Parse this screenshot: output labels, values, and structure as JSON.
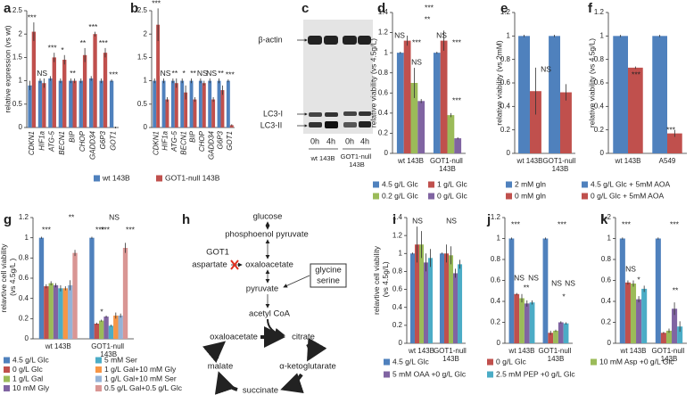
{
  "chart_data": [
    {
      "type": "bar",
      "panel": "a",
      "ylabel": "relative expression (vs wt)",
      "categories": [
        "CDKN1",
        "HIF1a",
        "ATG-5",
        "BECN1",
        "BIP",
        "CHOP",
        "GADD34",
        "G6P3",
        "GOT1"
      ],
      "series": [
        {
          "name": "wt 143B",
          "color": "#4f81bd",
          "values": [
            0.9,
            1,
            1.05,
            1,
            1,
            1,
            1.05,
            1,
            1
          ],
          "errors": [
            0.1,
            0.05,
            0.05,
            0.05,
            0.05,
            0.05,
            0.05,
            0.05,
            0.03
          ]
        },
        {
          "name": "GOT1-null 143B",
          "color": "#c0504d",
          "values": [
            2.05,
            0.95,
            1.5,
            1.45,
            1,
            1.55,
            2,
            1.6,
            0
          ],
          "errors": [
            0.2,
            0.1,
            0.1,
            0.1,
            0.05,
            0.15,
            0.05,
            0.1,
            0.02
          ]
        }
      ],
      "annotations": [
        "***",
        "NS",
        "***",
        "*",
        "**",
        "**",
        "***",
        "***",
        "***"
      ],
      "ylim": [
        0,
        2.5
      ],
      "yticks": [
        0,
        0.5,
        1,
        1.5,
        2,
        2.5
      ]
    },
    {
      "type": "bar",
      "panel": "b",
      "categories": [
        "CDKN1",
        "HIF1a",
        "ATG-5",
        "BECN1",
        "BIP",
        "CHOP",
        "GADD34",
        "G6P3",
        "GOT1"
      ],
      "series": [
        {
          "color": "#4f81bd",
          "values": [
            1,
            1,
            1,
            1,
            1,
            1,
            1,
            1,
            1
          ],
          "errors": [
            0.05,
            0.05,
            0.05,
            0.05,
            0.05,
            0.05,
            0.05,
            0.05,
            0.03
          ]
        },
        {
          "color": "#c0504d",
          "values": [
            2.2,
            0.6,
            0.95,
            0.75,
            0.6,
            0.95,
            0.6,
            0.8,
            0.05
          ],
          "errors": [
            0.35,
            0.05,
            0.1,
            0.15,
            0.05,
            0.05,
            0.05,
            0.1,
            0.02
          ]
        }
      ],
      "annotations": [
        "***",
        "NS",
        "**",
        "*",
        "**",
        "NS",
        "NS",
        "**",
        "***"
      ],
      "ylim": [
        0,
        2.5
      ],
      "yticks": [
        0,
        0.5,
        1,
        1.5,
        2,
        2.5
      ]
    },
    {
      "type": "bar",
      "panel": "d",
      "ylabel": "relative viability (vs 4.5g/L)",
      "categories": [
        "wt 143B",
        "GOT1-null 143B"
      ],
      "series": [
        {
          "name": "4.5 g/L Glc",
          "color": "#4f81bd",
          "values": [
            1,
            1
          ],
          "errors": [
            0.01,
            0.01
          ]
        },
        {
          "name": "1 g/L Glc",
          "color": "#c0504d",
          "values": [
            1.12,
            1.12
          ],
          "errors": [
            0.05,
            0.1
          ]
        },
        {
          "name": "0.2 g/L Glc",
          "color": "#9bbb59",
          "values": [
            0.7,
            0.38
          ],
          "errors": [
            0.15,
            0.02
          ]
        },
        {
          "name": "0 g/L Glc",
          "color": "#8064a2",
          "values": [
            0.52,
            0.15
          ],
          "errors": [
            0.02,
            0.01
          ]
        }
      ],
      "annotations": [
        "NS",
        "***",
        "NS",
        "***",
        "**",
        "NS",
        "***",
        "***"
      ],
      "ylim": [
        0,
        1.4
      ],
      "yticks": [
        0,
        0.2,
        0.4,
        0.6,
        0.8,
        1,
        1.2,
        1.4
      ]
    },
    {
      "type": "bar",
      "panel": "e",
      "ylabel": "relative viability (vs 2mM)",
      "categories": [
        "wt 143B",
        "GOT1-null 143B"
      ],
      "series": [
        {
          "name": "2 mM gln",
          "color": "#4f81bd",
          "values": [
            1,
            1
          ],
          "errors": [
            0.01,
            0.01
          ]
        },
        {
          "name": "0 mM gln",
          "color": "#c0504d",
          "values": [
            0.53,
            0.52
          ],
          "errors": [
            0.2,
            0.07
          ]
        }
      ],
      "annotations": [
        "NS"
      ],
      "ylim": [
        0,
        1.2
      ],
      "yticks": [
        0,
        0.2,
        0.4,
        0.6,
        0.8,
        1,
        1.2
      ]
    },
    {
      "type": "bar",
      "panel": "f",
      "ylabel": "relative viability (vs 4.5g/L)",
      "categories": [
        "wt 143B",
        "A549"
      ],
      "series": [
        {
          "name": "4.5 g/L Glc + 5mM AOA",
          "color": "#4f81bd",
          "values": [
            1,
            1
          ],
          "errors": [
            0.01,
            0.01
          ]
        },
        {
          "name": "0 g/L Glc + 5mM AOA",
          "color": "#c0504d",
          "values": [
            0.73,
            0.17
          ],
          "errors": [
            0.01,
            0.03
          ]
        }
      ],
      "annotations": [
        "***",
        "***"
      ],
      "ylim": [
        0,
        1.2
      ],
      "yticks": [
        0,
        0.2,
        0.4,
        0.6,
        0.8,
        1,
        1.2
      ]
    },
    {
      "type": "bar",
      "panel": "g",
      "ylabel": "relavtive cell viability (vs 4.5g/L )",
      "categories": [
        "wt 143B",
        "GOT1-null 143B"
      ],
      "series": [
        {
          "name": "4.5 g/L Glc",
          "color": "#4f81bd",
          "values": [
            1,
            1
          ],
          "errors": [
            0.01,
            0.01
          ]
        },
        {
          "name": "0 g/L Glc",
          "color": "#c0504d",
          "values": [
            0.52,
            0.15
          ],
          "errors": [
            0.02,
            0.01
          ]
        },
        {
          "name": "1 g/L Gal",
          "color": "#9bbb59",
          "values": [
            0.55,
            0.18
          ],
          "errors": [
            0.02,
            0.01
          ]
        },
        {
          "name": "10 mM Gly",
          "color": "#8064a2",
          "values": [
            0.53,
            0.22
          ],
          "errors": [
            0.02,
            0.01
          ]
        },
        {
          "name": "5 mM Ser",
          "color": "#4bacc6",
          "values": [
            0.5,
            0.13
          ],
          "errors": [
            0.03,
            0.01
          ]
        },
        {
          "name": "1 g/L Gal+10 mM Gly",
          "color": "#f79646",
          "values": [
            0.5,
            0.23
          ],
          "errors": [
            0.02,
            0.03
          ]
        },
        {
          "name": "1 g/L Gal+10 mM Ser",
          "color": "#95b3d7",
          "values": [
            0.53,
            0.23
          ],
          "errors": [
            0.05,
            0.02
          ]
        },
        {
          "name": "0.5 g/L Gal+0.5 g/L Glc",
          "color": "#d99694",
          "values": [
            0.85,
            0.9
          ],
          "errors": [
            0.03,
            0.05
          ]
        }
      ],
      "annotations": [
        "***",
        "**",
        "***",
        "***",
        "NS",
        "***",
        "*"
      ],
      "ylim": [
        0,
        1.2
      ],
      "yticks": [
        0,
        0.2,
        0.4,
        0.6,
        0.8,
        1,
        1.2
      ]
    },
    {
      "type": "bar",
      "panel": "i",
      "ylabel": "relavtive cell viability (vs 4.5g/L)",
      "categories": [
        "wt 143B",
        "GOT1-null 143B"
      ],
      "series": [
        {
          "name": "4.5 g/L Glc",
          "color": "#4f81bd",
          "values": [
            1,
            1
          ],
          "errors": [
            0.01,
            0.01
          ]
        },
        {
          "name": "0 g/L Glc",
          "color": "#c0504d",
          "values": [
            1.1,
            1
          ],
          "errors": [
            0.2,
            0.1
          ]
        },
        {
          "name": "10 mM Asp +0 g/L Glc",
          "color": "#9bbb59",
          "values": [
            1.1,
            0.98
          ],
          "errors": [
            0.15,
            0.1
          ]
        },
        {
          "name": "5 mM OAA +0 g/L Glc",
          "color": "#8064a2",
          "values": [
            0.9,
            0.78
          ],
          "errors": [
            0.1,
            0.05
          ]
        },
        {
          "name": "2.5 mM PEP +0 g/L Glc",
          "color": "#4bacc6",
          "values": [
            0.95,
            0.88
          ],
          "errors": [
            0.1,
            0.05
          ]
        }
      ],
      "annotations": [
        "NS",
        "NS"
      ],
      "ylim": [
        0,
        1.4
      ],
      "yticks": [
        0,
        0.2,
        0.4,
        0.6,
        0.8,
        1,
        1.2,
        1.4
      ]
    },
    {
      "type": "bar",
      "panel": "j",
      "categories": [
        "wt 143B",
        "GOT1-null 143B"
      ],
      "series": [
        {
          "color": "#4f81bd",
          "values": [
            1,
            1
          ],
          "errors": [
            0.01,
            0.01
          ]
        },
        {
          "color": "#c0504d",
          "values": [
            0.47,
            0.1
          ],
          "errors": [
            0.01,
            0.02
          ]
        },
        {
          "color": "#9bbb59",
          "values": [
            0.43,
            0.12
          ],
          "errors": [
            0.04,
            0.01
          ]
        },
        {
          "color": "#8064a2",
          "values": [
            0.38,
            0.2
          ],
          "errors": [
            0.03,
            0.01
          ]
        },
        {
          "color": "#4bacc6",
          "values": [
            0.39,
            0.19
          ],
          "errors": [
            0.02,
            0.01
          ]
        }
      ],
      "annotations": [
        "***",
        "NS",
        "NS",
        "**",
        "***",
        "NS",
        "NS",
        "*"
      ],
      "ylim": [
        0,
        1.2
      ],
      "yticks": [
        0,
        0.2,
        0.4,
        0.6,
        0.8,
        1,
        1.2
      ]
    },
    {
      "type": "bar",
      "panel": "k",
      "categories": [
        "wt 143B",
        "GOT1-null 143B"
      ],
      "series": [
        {
          "color": "#4f81bd",
          "values": [
            1,
            1
          ],
          "errors": [
            0.01,
            0.01
          ]
        },
        {
          "color": "#c0504d",
          "values": [
            0.58,
            0.1
          ],
          "errors": [
            0.02,
            0.01
          ]
        },
        {
          "color": "#9bbb59",
          "values": [
            0.57,
            0.12
          ],
          "errors": [
            0.03,
            0.02
          ]
        },
        {
          "color": "#8064a2",
          "values": [
            0.42,
            0.33
          ],
          "errors": [
            0.03,
            0.06
          ]
        },
        {
          "color": "#4bacc6",
          "values": [
            0.52,
            0.16
          ],
          "errors": [
            0.03,
            0.05
          ]
        }
      ],
      "annotations": [
        "***",
        "NS",
        "*",
        "***",
        "**"
      ],
      "ylim": [
        0,
        1.2
      ],
      "yticks": [
        0,
        0.2,
        0.4,
        0.6,
        0.8,
        1,
        1.2
      ]
    }
  ],
  "blot": {
    "panel": "c",
    "labels": [
      "β-actin",
      "LC3-I",
      "LC3-II"
    ],
    "lanes": [
      "0h",
      "4h",
      "0h",
      "4h"
    ],
    "groups": [
      "wt 143B",
      "GOT1-null 143B"
    ]
  },
  "pathway": {
    "panel": "h",
    "enzyme": "GOT1",
    "nodes": [
      "glucose",
      "phosphoenol pyruvate",
      "aspartate",
      "oxaloacetate",
      "pyruvate",
      "glycine",
      "serine",
      "acetyl CoA",
      "oxaloacetate",
      "citrate",
      "malate",
      "α-ketoglutarate",
      "succinate"
    ]
  }
}
